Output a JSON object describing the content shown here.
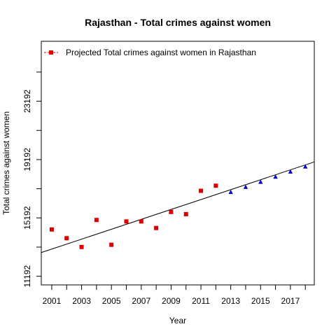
{
  "chart_data": {
    "type": "scatter",
    "title": "Rajasthan  -  Total crimes against women",
    "xlabel": "Year",
    "ylabel": "Total crimes against women",
    "xlim": [
      2000.3,
      2018.6
    ],
    "ylim": [
      10600,
      27300
    ],
    "x_ticks": [
      2001,
      2003,
      2005,
      2007,
      2009,
      2011,
      2013,
      2015,
      2017
    ],
    "x_minor_ticks": [
      2002,
      2004,
      2006,
      2008,
      2010,
      2012,
      2014,
      2016,
      2018
    ],
    "y_ticks": [
      11192,
      15192,
      19192,
      23192
    ],
    "y_minor_ticks": [
      13192,
      17192,
      21192,
      25192
    ],
    "grid": false,
    "legend_position": "top-left",
    "colors": {
      "observed": "#dd0000",
      "projected": "#0000cc",
      "trend": "#000000"
    },
    "legend": [
      {
        "label": "Projected  Total crimes against women  in  Rajasthan",
        "marker": "square",
        "color": "#dd0000"
      }
    ],
    "series": [
      {
        "name": "Projected  Total crimes against women  in  Rajasthan",
        "marker": "square",
        "color": "#dd0000",
        "x": [
          2001,
          2002,
          2003,
          2004,
          2005,
          2006,
          2007,
          2008,
          2009,
          2010,
          2011,
          2012
        ],
        "y": [
          14400,
          13800,
          13200,
          15050,
          13350,
          14950,
          14950,
          14500,
          15600,
          15450,
          17050,
          17400
        ]
      },
      {
        "marker": "triangle",
        "color": "#0000cc",
        "x": [
          2013,
          2014,
          2015,
          2016,
          2017,
          2018
        ],
        "y": [
          16950,
          17300,
          17650,
          18000,
          18350,
          18700
        ]
      }
    ],
    "trend_line": {
      "x": [
        2000.3,
        2018.6
      ],
      "y": [
        12820,
        19030
      ]
    }
  }
}
